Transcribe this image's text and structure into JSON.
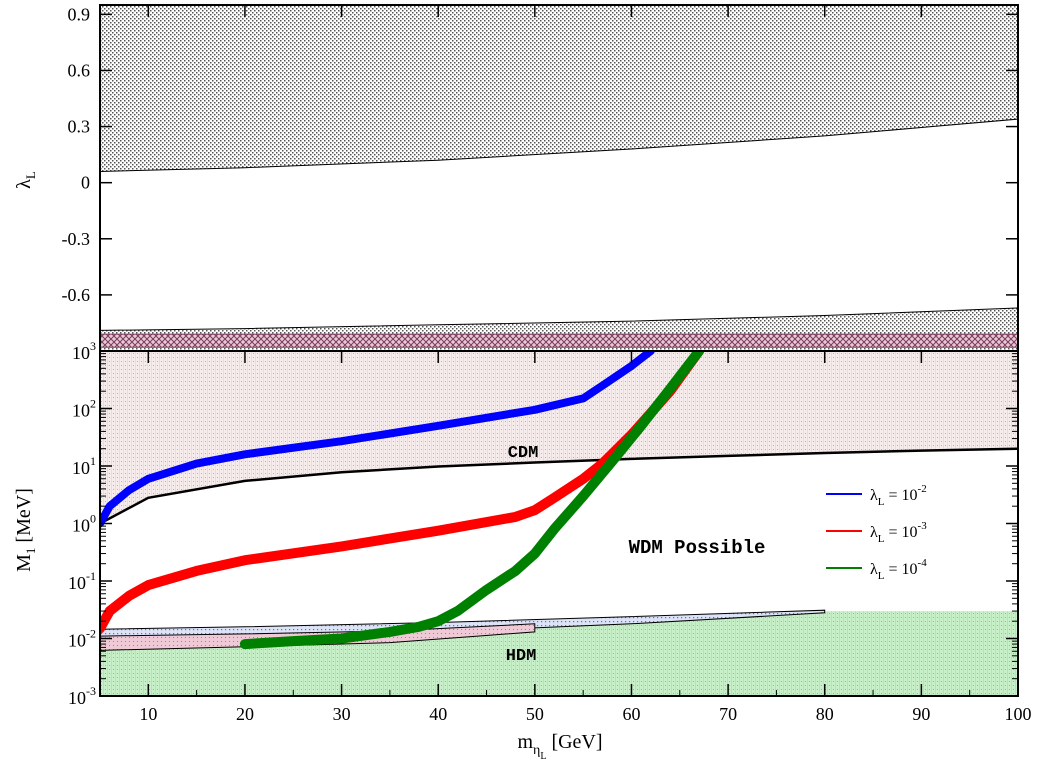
{
  "chart_data": [
    {
      "type": "area",
      "panel": "top",
      "ylabel": "λ",
      "ylabel_sub": "L",
      "xlim": [
        5,
        100
      ],
      "ylim": [
        -0.9,
        0.95
      ],
      "yticks": [
        "0.9",
        "0.6",
        "0.3",
        "0",
        "-0.3",
        "-0.6"
      ],
      "ytick_values": [
        0.9,
        0.6,
        0.3,
        0,
        -0.3,
        -0.6
      ],
      "regions": [
        {
          "boundary_x": [
            5,
            20,
            40,
            60,
            80,
            100
          ],
          "boundary_y": [
            0.06,
            0.08,
            0.12,
            0.18,
            0.25,
            0.34
          ],
          "fill": "above"
        },
        {
          "boundary_x": [
            5,
            20,
            40,
            60,
            80,
            100
          ],
          "boundary_y": [
            -0.79,
            -0.78,
            -0.76,
            -0.74,
            -0.71,
            -0.67
          ],
          "fill": "below"
        }
      ],
      "band_y": [
        -0.88,
        -0.81
      ]
    },
    {
      "type": "line",
      "panel": "bottom",
      "xlabel": "m",
      "xlabel_sub": "η",
      "xlabel_subsub": "L",
      "xlabel_unit": "[GeV]",
      "ylabel": "M",
      "ylabel_sub": "1",
      "ylabel_unit": "[MeV]",
      "xlim": [
        5,
        100
      ],
      "ylim_log10": [
        -3,
        3
      ],
      "yscale": "log",
      "xticks": [
        "10",
        "20",
        "30",
        "40",
        "50",
        "60",
        "70",
        "80",
        "90",
        "100"
      ],
      "xtick_values": [
        10,
        20,
        30,
        40,
        50,
        60,
        70,
        80,
        90,
        100
      ],
      "yticks_base": "10",
      "yticks_exp": [
        "3",
        "2",
        "1",
        "0",
        "-1",
        "-2",
        "-3"
      ],
      "ytick_values_log10": [
        3,
        2,
        1,
        0,
        -1,
        -2,
        -3
      ],
      "annotations": {
        "cdm": "CDM",
        "wdm": "WDM Possible",
        "hdm": "HDM"
      },
      "cdm_boundary": {
        "x": [
          5,
          10,
          20,
          30,
          40,
          50,
          60,
          70,
          80,
          90,
          100
        ],
        "y": [
          1.0,
          2.8,
          5.5,
          7.8,
          9.8,
          11.5,
          13.3,
          15.0,
          16.8,
          18.5,
          20.0
        ]
      },
      "hdm_boundary": {
        "x": [
          5,
          10,
          20,
          30,
          40,
          50,
          60,
          70,
          80,
          90,
          100
        ],
        "y": [
          0.014,
          0.015,
          0.016,
          0.017,
          0.019,
          0.021,
          0.024,
          0.027,
          0.03,
          0.03,
          0.03
        ]
      },
      "series": [
        {
          "name_prefix": "λ",
          "name_sub": "L",
          "name_eq": " = 10",
          "name_exp": "-2",
          "color": "#0000ff",
          "x": [
            5,
            6,
            8,
            10,
            15,
            20,
            30,
            40,
            50,
            55,
            57,
            60,
            62
          ],
          "y": [
            1.0,
            2.0,
            3.8,
            6.0,
            11.0,
            16.0,
            27.0,
            50.0,
            95.0,
            150.0,
            250.0,
            550.0,
            1000.0
          ]
        },
        {
          "name_prefix": "λ",
          "name_sub": "L",
          "name_eq": " = 10",
          "name_exp": "-3",
          "color": "#ff0000",
          "x": [
            5,
            6,
            8,
            10,
            15,
            20,
            30,
            40,
            48,
            50,
            52,
            55,
            57,
            60,
            64,
            67
          ],
          "y": [
            0.015,
            0.03,
            0.055,
            0.085,
            0.15,
            0.23,
            0.4,
            0.75,
            1.3,
            1.7,
            2.8,
            6.0,
            11.0,
            35.0,
            200.0,
            1000.0
          ]
        },
        {
          "name_prefix": "λ",
          "name_sub": "L",
          "name_eq": " = 10",
          "name_exp": "-4",
          "color": "#008000",
          "x": [
            20,
            25,
            30,
            35,
            38,
            40,
            42,
            45,
            48,
            50,
            52,
            55,
            58,
            61,
            64,
            67
          ],
          "y": [
            0.008,
            0.009,
            0.01,
            0.013,
            0.016,
            0.02,
            0.03,
            0.07,
            0.15,
            0.3,
            0.8,
            3.0,
            12.0,
            50.0,
            220.0,
            1000.0
          ]
        }
      ]
    }
  ]
}
